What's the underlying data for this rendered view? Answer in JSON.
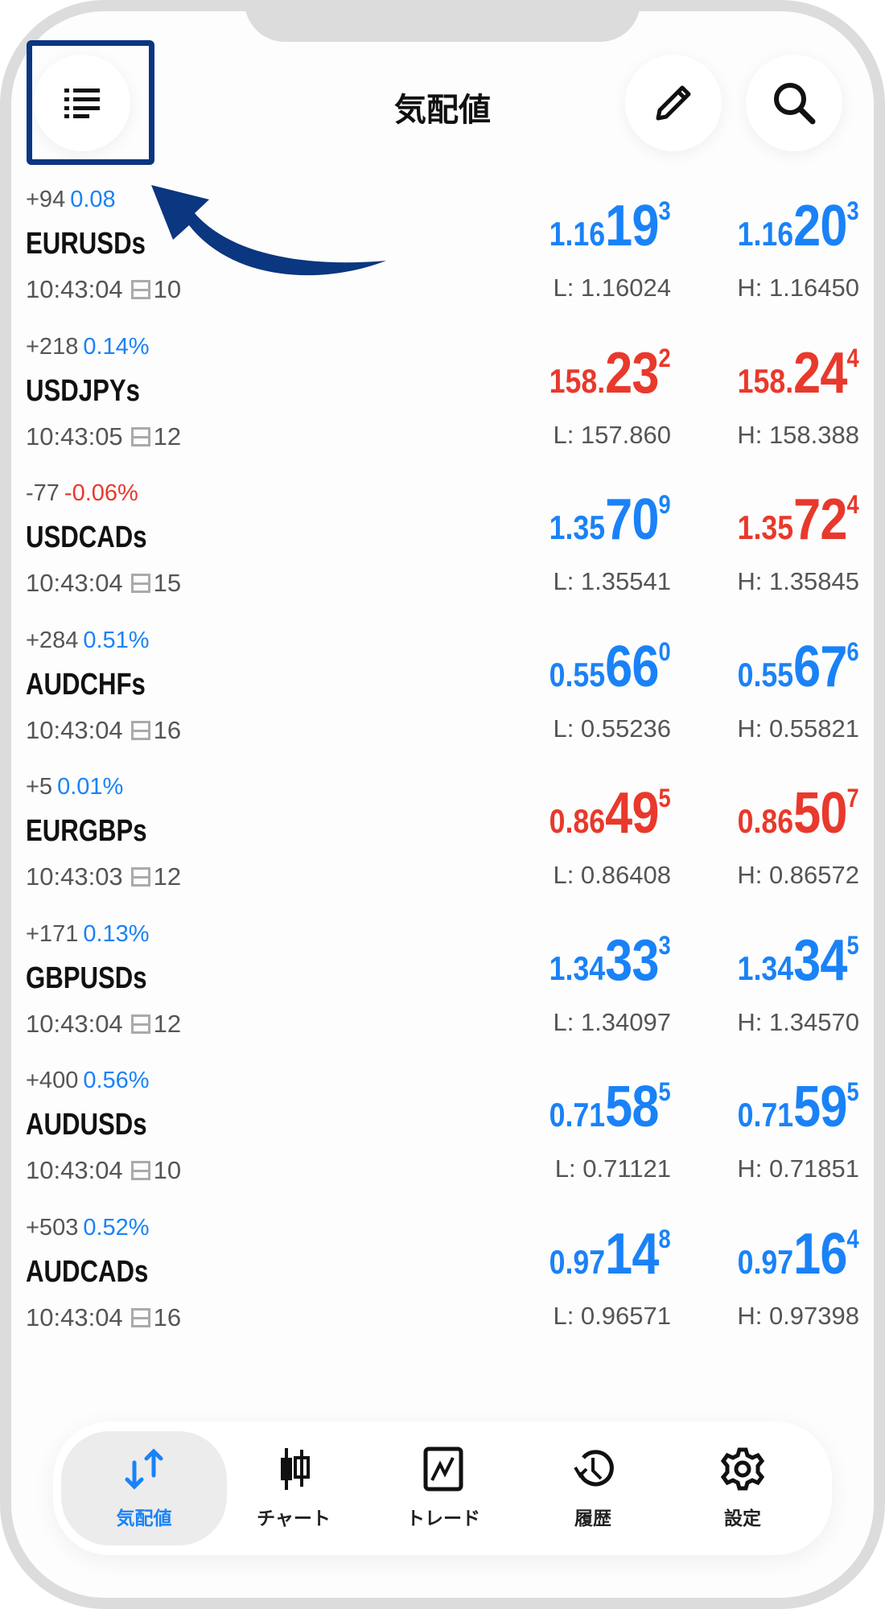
{
  "header": {
    "title": "気配値",
    "menu_icon": "list-icon",
    "edit_icon": "pencil-icon",
    "search_icon": "search-icon"
  },
  "annotation": {
    "highlight_color": "#0b3680",
    "arrow": "curved-arrow-pointing-to-menu"
  },
  "colors": {
    "up": "#1a82f7",
    "down": "#e8392c"
  },
  "quotes": [
    {
      "change": "+94",
      "pct": "0.08",
      "pct_color": "#1a82f7",
      "symbol": "EURUSDs",
      "time": "10:43:04",
      "spread": "10",
      "bid": {
        "pre": "1.16",
        "big": "19",
        "sup": "3",
        "color": "#1a82f7"
      },
      "low": "L: 1.16024",
      "ask": {
        "pre": "1.16",
        "big": "20",
        "sup": "3",
        "color": "#1a82f7"
      },
      "high": "H: 1.16450"
    },
    {
      "change": "+218",
      "pct": "0.14%",
      "pct_color": "#1a82f7",
      "symbol": "USDJPYs",
      "time": "10:43:05",
      "spread": "12",
      "bid": {
        "pre": "158.",
        "big": "23",
        "sup": "2",
        "color": "#e8392c"
      },
      "low": "L: 157.860",
      "ask": {
        "pre": "158.",
        "big": "24",
        "sup": "4",
        "color": "#e8392c"
      },
      "high": "H: 158.388"
    },
    {
      "change": "-77",
      "pct": "-0.06%",
      "pct_color": "#e8392c",
      "symbol": "USDCADs",
      "time": "10:43:04",
      "spread": "15",
      "bid": {
        "pre": "1.35",
        "big": "70",
        "sup": "9",
        "color": "#1a82f7"
      },
      "low": "L: 1.35541",
      "ask": {
        "pre": "1.35",
        "big": "72",
        "sup": "4",
        "color": "#e8392c"
      },
      "high": "H: 1.35845"
    },
    {
      "change": "+284",
      "pct": "0.51%",
      "pct_color": "#1a82f7",
      "symbol": "AUDCHFs",
      "time": "10:43:04",
      "spread": "16",
      "bid": {
        "pre": "0.55",
        "big": "66",
        "sup": "0",
        "color": "#1a82f7"
      },
      "low": "L: 0.55236",
      "ask": {
        "pre": "0.55",
        "big": "67",
        "sup": "6",
        "color": "#1a82f7"
      },
      "high": "H: 0.55821"
    },
    {
      "change": "+5",
      "pct": "0.01%",
      "pct_color": "#1a82f7",
      "symbol": "EURGBPs",
      "time": "10:43:03",
      "spread": "12",
      "bid": {
        "pre": "0.86",
        "big": "49",
        "sup": "5",
        "color": "#e8392c"
      },
      "low": "L: 0.86408",
      "ask": {
        "pre": "0.86",
        "big": "50",
        "sup": "7",
        "color": "#e8392c"
      },
      "high": "H: 0.86572"
    },
    {
      "change": "+171",
      "pct": "0.13%",
      "pct_color": "#1a82f7",
      "symbol": "GBPUSDs",
      "time": "10:43:04",
      "spread": "12",
      "bid": {
        "pre": "1.34",
        "big": "33",
        "sup": "3",
        "color": "#1a82f7"
      },
      "low": "L: 1.34097",
      "ask": {
        "pre": "1.34",
        "big": "34",
        "sup": "5",
        "color": "#1a82f7"
      },
      "high": "H: 1.34570"
    },
    {
      "change": "+400",
      "pct": "0.56%",
      "pct_color": "#1a82f7",
      "symbol": "AUDUSDs",
      "time": "10:43:04",
      "spread": "10",
      "bid": {
        "pre": "0.71",
        "big": "58",
        "sup": "5",
        "color": "#1a82f7"
      },
      "low": "L: 0.71121",
      "ask": {
        "pre": "0.71",
        "big": "59",
        "sup": "5",
        "color": "#1a82f7"
      },
      "high": "H: 0.71851"
    },
    {
      "change": "+503",
      "pct": "0.52%",
      "pct_color": "#1a82f7",
      "symbol": "AUDCADs",
      "time": "10:43:04",
      "spread": "16",
      "bid": {
        "pre": "0.97",
        "big": "14",
        "sup": "8",
        "color": "#1a82f7"
      },
      "low": "L: 0.96571",
      "ask": {
        "pre": "0.97",
        "big": "16",
        "sup": "4",
        "color": "#1a82f7"
      },
      "high": "H: 0.97398"
    }
  ],
  "tabs": [
    {
      "label": "気配値",
      "icon": "arrows-up-down-icon",
      "active": true
    },
    {
      "label": "チャート",
      "icon": "candlestick-icon"
    },
    {
      "label": "トレード",
      "icon": "trade-chart-icon"
    },
    {
      "label": "履歴",
      "icon": "history-icon"
    },
    {
      "label": "設定",
      "icon": "gear-icon"
    }
  ]
}
